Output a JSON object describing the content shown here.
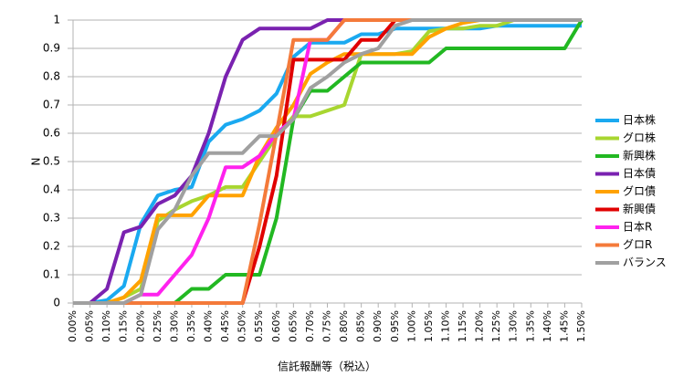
{
  "chart_data": {
    "type": "line",
    "x_label": "信託報酬等（税込）",
    "y_label": "N",
    "categories": [
      "0.00%",
      "0.05%",
      "0.10%",
      "0.15%",
      "0.20%",
      "0.25%",
      "0.30%",
      "0.35%",
      "0.40%",
      "0.45%",
      "0.50%",
      "0.55%",
      "0.60%",
      "0.65%",
      "0.70%",
      "0.75%",
      "0.80%",
      "0.85%",
      "0.90%",
      "0.95%",
      "1.00%",
      "1.05%",
      "1.10%",
      "1.15%",
      "1.20%",
      "1.25%",
      "1.30%",
      "1.35%",
      "1.40%",
      "1.45%",
      "1.50%"
    ],
    "ylim": [
      0,
      1
    ],
    "yticks": [
      0,
      0.1,
      0.2,
      0.3,
      0.4,
      0.5,
      0.6,
      0.7,
      0.8,
      0.9,
      1
    ],
    "grid": true,
    "legend": "right",
    "series": [
      {
        "name": "日本株",
        "color": "#1aa9f0",
        "values": [
          0,
          0,
          0.01,
          0.06,
          0.28,
          0.38,
          0.4,
          0.41,
          0.57,
          0.63,
          0.65,
          0.68,
          0.74,
          0.87,
          0.92,
          0.92,
          0.92,
          0.95,
          0.95,
          0.97,
          0.97,
          0.97,
          0.97,
          0.97,
          0.97,
          0.98,
          0.98,
          0.98,
          0.98,
          0.98,
          0.98
        ]
      },
      {
        "name": "グロ株",
        "color": "#a8d630",
        "values": [
          0,
          0,
          0,
          0.02,
          0.05,
          0.29,
          0.33,
          0.36,
          0.38,
          0.41,
          0.41,
          0.5,
          0.59,
          0.66,
          0.66,
          0.68,
          0.7,
          0.88,
          0.88,
          0.88,
          0.89,
          0.96,
          0.97,
          0.97,
          0.98,
          0.98,
          1,
          1,
          1,
          1,
          1
        ]
      },
      {
        "name": "新興株",
        "color": "#22b822",
        "values": [
          0,
          0,
          0,
          0,
          0,
          0,
          0,
          0.05,
          0.05,
          0.1,
          0.1,
          0.1,
          0.3,
          0.65,
          0.75,
          0.75,
          0.8,
          0.85,
          0.85,
          0.85,
          0.85,
          0.85,
          0.9,
          0.9,
          0.9,
          0.9,
          0.9,
          0.9,
          0.9,
          0.9,
          1
        ]
      },
      {
        "name": "日本債",
        "color": "#7a22b0",
        "values": [
          0,
          0,
          0.05,
          0.25,
          0.27,
          0.35,
          0.38,
          0.45,
          0.6,
          0.8,
          0.93,
          0.97,
          0.97,
          0.97,
          0.97,
          1,
          1,
          1,
          1,
          1,
          1,
          1,
          1,
          1,
          1,
          1,
          1,
          1,
          1,
          1,
          1
        ]
      },
      {
        "name": "グロ債",
        "color": "#ffa200",
        "values": [
          0,
          0,
          0,
          0.02,
          0.08,
          0.31,
          0.31,
          0.31,
          0.38,
          0.38,
          0.38,
          0.52,
          0.62,
          0.7,
          0.81,
          0.85,
          0.88,
          0.88,
          0.88,
          0.88,
          0.88,
          0.94,
          0.97,
          0.99,
          1,
          1,
          1,
          1,
          1,
          1,
          1
        ]
      },
      {
        "name": "新興債",
        "color": "#e00000",
        "values": [
          0,
          0,
          0,
          0,
          0,
          0,
          0,
          0,
          0,
          0,
          0,
          0.2,
          0.45,
          0.86,
          0.86,
          0.86,
          0.86,
          0.93,
          0.93,
          1,
          1,
          1,
          1,
          1,
          1,
          1,
          1,
          1,
          1,
          1,
          1
        ]
      },
      {
        "name": "日本R",
        "color": "#ff22ee",
        "values": [
          0,
          0,
          0,
          0,
          0.03,
          0.03,
          0.1,
          0.17,
          0.3,
          0.48,
          0.48,
          0.52,
          0.6,
          0.65,
          0.93,
          0.93,
          1,
          1,
          1,
          1,
          1,
          1,
          1,
          1,
          1,
          1,
          1,
          1,
          1,
          1,
          1
        ]
      },
      {
        "name": "グロR",
        "color": "#f47a3a",
        "values": [
          0,
          0,
          0,
          0,
          0,
          0,
          0,
          0,
          0,
          0,
          0,
          0.28,
          0.6,
          0.93,
          0.93,
          0.93,
          1,
          1,
          1,
          1,
          1,
          1,
          1,
          1,
          1,
          1,
          1,
          1,
          1,
          1,
          1
        ]
      },
      {
        "name": "バランス",
        "color": "#a0a0a0",
        "values": [
          0,
          0,
          0,
          0,
          0.03,
          0.26,
          0.33,
          0.45,
          0.53,
          0.53,
          0.53,
          0.59,
          0.59,
          0.65,
          0.76,
          0.8,
          0.85,
          0.88,
          0.9,
          0.98,
          1,
          1,
          1,
          1,
          1,
          1,
          1,
          1,
          1,
          1,
          1
        ]
      }
    ]
  }
}
